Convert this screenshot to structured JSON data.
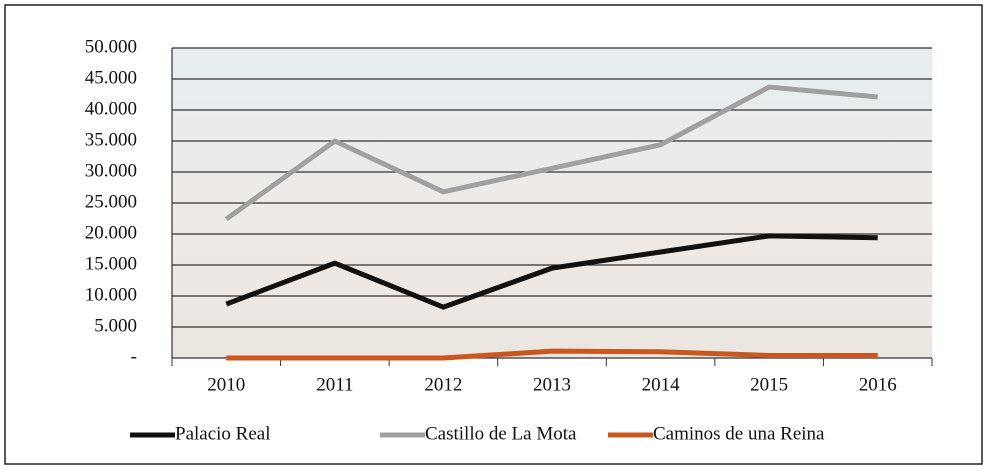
{
  "chart_data": {
    "type": "line",
    "categories": [
      "2010",
      "2011",
      "2012",
      "2013",
      "2014",
      "2015",
      "2016"
    ],
    "series": [
      {
        "name": "Palacio Real",
        "color": "#111111",
        "values": [
          8700,
          15300,
          8200,
          14500,
          17100,
          19700,
          19400
        ]
      },
      {
        "name": "Castillo de La Mota",
        "color": "#a0a0a0",
        "values": [
          22400,
          35000,
          26800,
          30600,
          34400,
          43700,
          42100
        ]
      },
      {
        "name": "Caminos de una Reina",
        "color": "#c8581e",
        "values": [
          0,
          0,
          0,
          1100,
          1000,
          400,
          400
        ]
      }
    ],
    "ylim": [
      0,
      50000
    ],
    "yticks": [
      {
        "value": 0,
        "label": "-"
      },
      {
        "value": 5000,
        "label": "5.000"
      },
      {
        "value": 10000,
        "label": "10.000"
      },
      {
        "value": 15000,
        "label": "15.000"
      },
      {
        "value": 20000,
        "label": "20.000"
      },
      {
        "value": 25000,
        "label": "25.000"
      },
      {
        "value": 30000,
        "label": "30.000"
      },
      {
        "value": 35000,
        "label": "35.000"
      },
      {
        "value": 40000,
        "label": "40.000"
      },
      {
        "value": 45000,
        "label": "45.000"
      },
      {
        "value": 50000,
        "label": "50.000"
      }
    ],
    "grid": true,
    "legend": "bottom"
  }
}
